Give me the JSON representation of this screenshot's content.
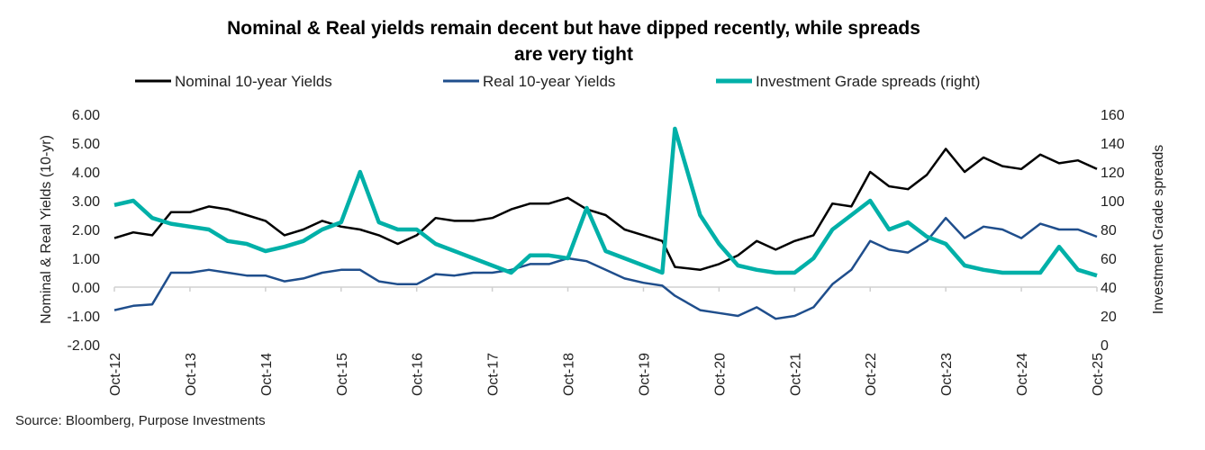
{
  "chart_data": {
    "type": "line",
    "title": "Nominal & Real yields remain decent but have dipped recently, while spreads are very tight",
    "title_lines": [
      "Nominal & Real yields remain decent but have dipped recently, while spreads",
      "are very tight"
    ],
    "ylabel": "Nominal & Real Yields (10-yr)",
    "y2label": "Investment Grade spreads",
    "ylim": [
      -2,
      6
    ],
    "y2lim": [
      0,
      160
    ],
    "yticks": [
      "6.00",
      "5.00",
      "4.00",
      "3.00",
      "2.00",
      "1.00",
      "0.00",
      "-1.00",
      "-2.00"
    ],
    "y2ticks": [
      "160",
      "140",
      "120",
      "100",
      "80",
      "60",
      "40",
      "20",
      "0"
    ],
    "xticks": [
      "Oct-12",
      "Oct-13",
      "Oct-14",
      "Oct-15",
      "Oct-16",
      "Oct-17",
      "Oct-18",
      "Oct-19",
      "Oct-20",
      "Oct-21",
      "Oct-22",
      "Oct-23",
      "Oct-24",
      "Oct-25"
    ],
    "xlim": [
      "2012-10",
      "2025-10"
    ],
    "grid": false,
    "legend_position": "top",
    "x": [
      "2012-10",
      "2013-01",
      "2013-04",
      "2013-07",
      "2013-10",
      "2014-01",
      "2014-04",
      "2014-07",
      "2014-10",
      "2015-01",
      "2015-04",
      "2015-07",
      "2015-10",
      "2016-01",
      "2016-04",
      "2016-07",
      "2016-10",
      "2017-01",
      "2017-04",
      "2017-07",
      "2017-10",
      "2018-01",
      "2018-04",
      "2018-07",
      "2018-10",
      "2019-01",
      "2019-04",
      "2019-07",
      "2019-10",
      "2020-01",
      "2020-03",
      "2020-07",
      "2020-10",
      "2021-01",
      "2021-04",
      "2021-07",
      "2021-10",
      "2022-01",
      "2022-04",
      "2022-07",
      "2022-10",
      "2023-01",
      "2023-04",
      "2023-07",
      "2023-10",
      "2024-01",
      "2024-04",
      "2024-07",
      "2024-10",
      "2025-01",
      "2025-04",
      "2025-07",
      "2025-10"
    ],
    "series": [
      {
        "name": "Nominal 10-year Yields",
        "axis": "left",
        "color": "#000000",
        "values": [
          1.7,
          1.9,
          1.8,
          2.6,
          2.6,
          2.8,
          2.7,
          2.5,
          2.3,
          1.8,
          2.0,
          2.3,
          2.1,
          2.0,
          1.8,
          1.5,
          1.8,
          2.4,
          2.3,
          2.3,
          2.4,
          2.7,
          2.9,
          2.9,
          3.1,
          2.7,
          2.5,
          2.0,
          1.8,
          1.6,
          0.7,
          0.6,
          0.8,
          1.1,
          1.6,
          1.3,
          1.6,
          1.8,
          2.9,
          2.8,
          4.0,
          3.5,
          3.4,
          3.9,
          4.8,
          4.0,
          4.5,
          4.2,
          4.1,
          4.6,
          4.3,
          4.4,
          4.1
        ]
      },
      {
        "name": "Real 10-year Yields",
        "axis": "left",
        "color": "#1f4e8c",
        "values": [
          -0.8,
          -0.65,
          -0.6,
          0.5,
          0.5,
          0.6,
          0.5,
          0.4,
          0.4,
          0.2,
          0.3,
          0.5,
          0.6,
          0.6,
          0.2,
          0.1,
          0.1,
          0.45,
          0.4,
          0.5,
          0.5,
          0.6,
          0.8,
          0.8,
          1.0,
          0.9,
          0.6,
          0.3,
          0.15,
          0.05,
          -0.3,
          -0.8,
          -0.9,
          -1.0,
          -0.7,
          -1.1,
          -1.0,
          -0.7,
          0.1,
          0.6,
          1.6,
          1.3,
          1.2,
          1.6,
          2.4,
          1.7,
          2.1,
          2.0,
          1.7,
          2.2,
          2.0,
          2.0,
          1.75
        ]
      },
      {
        "name": "Investment Grade spreads (right)",
        "axis": "right",
        "color": "#00b0a8",
        "values": [
          97,
          100,
          88,
          84,
          82,
          80,
          72,
          70,
          65,
          68,
          72,
          80,
          85,
          120,
          85,
          80,
          80,
          70,
          65,
          60,
          55,
          50,
          62,
          62,
          60,
          95,
          65,
          60,
          55,
          50,
          150,
          90,
          70,
          55,
          52,
          50,
          50,
          60,
          80,
          90,
          100,
          80,
          85,
          75,
          70,
          55,
          52,
          50,
          50,
          50,
          68,
          52,
          48
        ]
      }
    ]
  },
  "source": "Source: Bloomberg, Purpose Investments"
}
